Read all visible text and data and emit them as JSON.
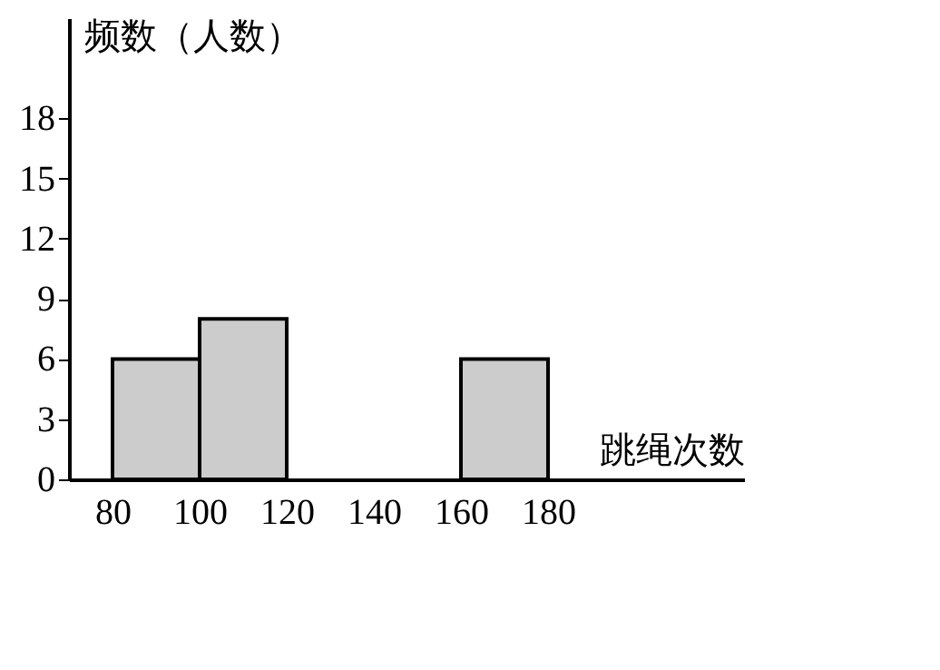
{
  "chart_data": {
    "type": "histogram",
    "xlabel": "跳绳次数",
    "ylabel": "频数（人数）",
    "bins": [
      80,
      100,
      120,
      140,
      160,
      180
    ],
    "values": [
      6,
      8,
      null,
      null,
      6
    ],
    "color": "#cccccc",
    "xlim": [
      70,
      225
    ],
    "xticks": [
      80,
      100,
      120,
      140,
      160,
      180
    ],
    "ylim": [
      0,
      23
    ],
    "yticks": [
      0,
      3,
      6,
      9,
      12,
      15,
      18
    ],
    "grid": false
  }
}
